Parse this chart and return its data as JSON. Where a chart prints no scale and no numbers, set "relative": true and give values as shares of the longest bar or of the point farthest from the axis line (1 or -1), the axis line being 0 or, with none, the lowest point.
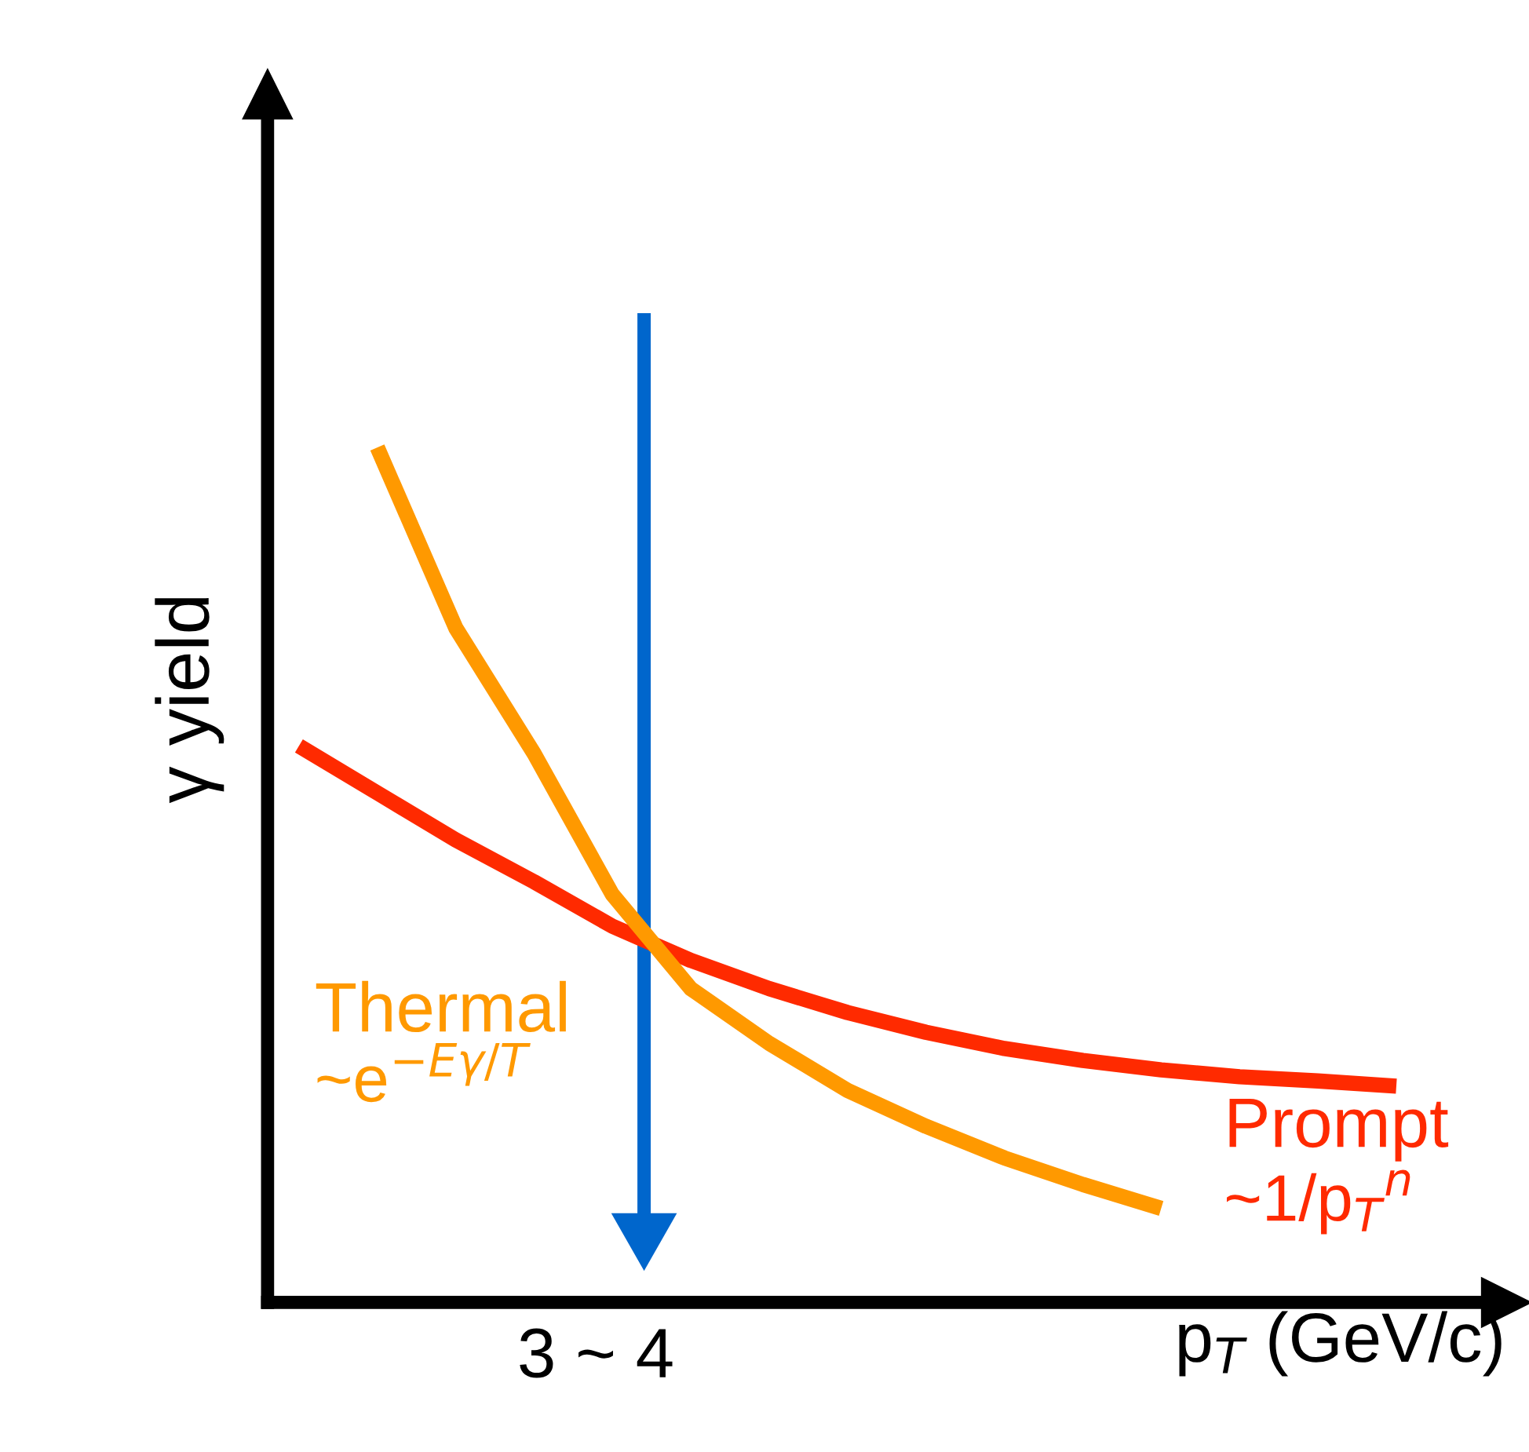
{
  "chart_data": {
    "type": "line",
    "relative": true,
    "xlabel": "p$_{T}$ (GeV/c)",
    "ylabel": "γ yield",
    "categories": [
      null,
      null,
      null,
      null,
      null,
      null,
      null,
      null,
      null,
      null,
      null,
      null,
      null,
      null,
      null
    ],
    "series": [
      {
        "name": "Prompt",
        "color": "#ff2a00",
        "values": [
          0.651,
          0.596,
          0.541,
          0.492,
          0.44,
          0.4,
          0.367,
          0.339,
          0.316,
          0.297,
          0.283,
          0.272,
          0.264,
          0.259,
          0.253
        ]
      },
      {
        "name": "Thermal",
        "color": "#ff9900",
        "values": [
          null,
          1,
          0.789,
          0.642,
          0.477,
          0.367,
          0.303,
          0.248,
          0.206,
          0.169,
          0.138,
          0.11,
          null,
          null,
          null
        ]
      }
    ],
    "annotations": [
      "~e$^{−Eγ/T}$",
      "~1/p$_{T}$$^{n}$",
      "3 ~ 4"
    ],
    "legend": false,
    "marker": "none",
    "line_style": "solid"
  }
}
